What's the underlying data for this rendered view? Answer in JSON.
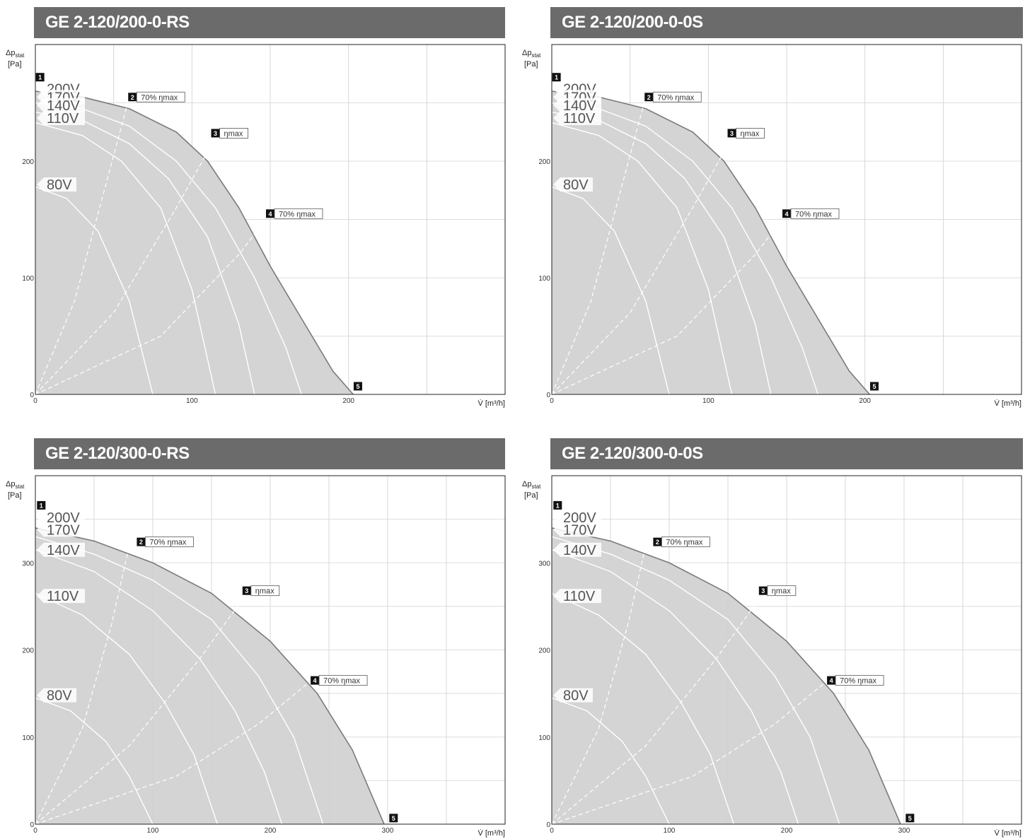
{
  "chart_data": [
    {
      "type": "line",
      "title": "GE 2-120/200-0-RS",
      "ylabel": "Δp",
      "ylabel_sub": "stat",
      "ylabel_unit": "[Pa]",
      "xlabel": "V̇ [m³/h]",
      "xlim": [
        0,
        300
      ],
      "ylim": [
        0,
        300
      ],
      "x_ticks": [
        0,
        100,
        200
      ],
      "y_ticks": [
        0,
        100,
        200
      ],
      "grid": true,
      "series": [
        {
          "name": "200V",
          "x": [
            0,
            30,
            60,
            90,
            110,
            130,
            150,
            170,
            190,
            203
          ],
          "y": [
            260,
            255,
            245,
            225,
            200,
            160,
            110,
            65,
            20,
            0
          ]
        },
        {
          "name": "170V",
          "x": [
            0,
            30,
            60,
            90,
            115,
            140,
            160,
            170
          ],
          "y": [
            250,
            245,
            230,
            200,
            160,
            100,
            40,
            0
          ]
        },
        {
          "name": "140V",
          "x": [
            0,
            30,
            60,
            85,
            110,
            130,
            140
          ],
          "y": [
            242,
            235,
            215,
            185,
            135,
            60,
            0
          ]
        },
        {
          "name": "110V",
          "x": [
            0,
            30,
            55,
            80,
            100,
            115
          ],
          "y": [
            233,
            222,
            200,
            160,
            90,
            0
          ]
        },
        {
          "name": "80V",
          "x": [
            0,
            20,
            40,
            60,
            75
          ],
          "y": [
            178,
            168,
            140,
            80,
            0
          ]
        }
      ],
      "efficiency_curves": [
        {
          "name": "70% ηmax (2)",
          "x": [
            0,
            25,
            45,
            60
          ],
          "y": [
            0,
            80,
            180,
            255
          ]
        },
        {
          "name": "ηmax (3)",
          "x": [
            0,
            50,
            90,
            115
          ],
          "y": [
            0,
            70,
            160,
            220
          ]
        },
        {
          "name": "70% ηmax (4)",
          "x": [
            0,
            80,
            130,
            150
          ],
          "y": [
            0,
            50,
            120,
            155
          ]
        }
      ],
      "markers": [
        {
          "id": "1",
          "x": 3,
          "y": 272,
          "label": ""
        },
        {
          "id": "2",
          "x": 62,
          "y": 255,
          "label": "70% ηmax"
        },
        {
          "id": "3",
          "x": 115,
          "y": 224,
          "label": "ηmax"
        },
        {
          "id": "4",
          "x": 150,
          "y": 155,
          "label": "70% ηmax"
        },
        {
          "id": "5",
          "x": 206,
          "y": 7,
          "label": ""
        }
      ],
      "voltage_labels": [
        {
          "label": "200V",
          "y": 262
        },
        {
          "label": "170V",
          "y": 255
        },
        {
          "label": "140V",
          "y": 248
        },
        {
          "label": "110V",
          "y": 237
        },
        {
          "label": "80V",
          "y": 180
        }
      ]
    },
    {
      "type": "line",
      "title": "GE 2-120/200-0-0S",
      "ylabel": "Δp",
      "ylabel_sub": "stat",
      "ylabel_unit": "[Pa]",
      "xlabel": "V̇ [m³/h]",
      "xlim": [
        0,
        300
      ],
      "ylim": [
        0,
        300
      ],
      "x_ticks": [
        0,
        100,
        200
      ],
      "y_ticks": [
        0,
        100,
        200
      ],
      "grid": true,
      "series": [
        {
          "name": "200V",
          "x": [
            0,
            30,
            60,
            90,
            110,
            130,
            150,
            170,
            190,
            203
          ],
          "y": [
            260,
            255,
            245,
            225,
            200,
            160,
            110,
            65,
            20,
            0
          ]
        },
        {
          "name": "170V",
          "x": [
            0,
            30,
            60,
            90,
            115,
            140,
            160,
            170
          ],
          "y": [
            250,
            245,
            230,
            200,
            160,
            100,
            40,
            0
          ]
        },
        {
          "name": "140V",
          "x": [
            0,
            30,
            60,
            85,
            110,
            130,
            140
          ],
          "y": [
            242,
            235,
            215,
            185,
            135,
            60,
            0
          ]
        },
        {
          "name": "110V",
          "x": [
            0,
            30,
            55,
            80,
            100,
            115
          ],
          "y": [
            233,
            222,
            200,
            160,
            90,
            0
          ]
        },
        {
          "name": "80V",
          "x": [
            0,
            20,
            40,
            60,
            75
          ],
          "y": [
            178,
            168,
            140,
            80,
            0
          ]
        }
      ],
      "efficiency_curves": [
        {
          "name": "70% ηmax (2)",
          "x": [
            0,
            25,
            45,
            60
          ],
          "y": [
            0,
            80,
            180,
            255
          ]
        },
        {
          "name": "ηmax (3)",
          "x": [
            0,
            50,
            90,
            115
          ],
          "y": [
            0,
            70,
            160,
            220
          ]
        },
        {
          "name": "70% ηmax (4)",
          "x": [
            0,
            80,
            130,
            150
          ],
          "y": [
            0,
            50,
            120,
            155
          ]
        }
      ],
      "markers": [
        {
          "id": "1",
          "x": 3,
          "y": 272,
          "label": ""
        },
        {
          "id": "2",
          "x": 62,
          "y": 255,
          "label": "70% ηmax"
        },
        {
          "id": "3",
          "x": 115,
          "y": 224,
          "label": "ηmax"
        },
        {
          "id": "4",
          "x": 150,
          "y": 155,
          "label": "70% ηmax"
        },
        {
          "id": "5",
          "x": 206,
          "y": 7,
          "label": ""
        }
      ],
      "voltage_labels": [
        {
          "label": "200V",
          "y": 262
        },
        {
          "label": "170V",
          "y": 255
        },
        {
          "label": "140V",
          "y": 248
        },
        {
          "label": "110V",
          "y": 237
        },
        {
          "label": "80V",
          "y": 180
        }
      ]
    },
    {
      "type": "line",
      "title": "GE 2-120/300-0-RS",
      "ylabel": "Δp",
      "ylabel_sub": "stat",
      "ylabel_unit": "[Pa]",
      "xlabel": "V̇ [m³/h]",
      "xlim": [
        0,
        400
      ],
      "ylim": [
        0,
        400
      ],
      "x_ticks": [
        0,
        100,
        200,
        300
      ],
      "y_ticks": [
        0,
        100,
        200,
        300
      ],
      "grid": true,
      "series": [
        {
          "name": "200V",
          "x": [
            0,
            50,
            100,
            150,
            200,
            240,
            270,
            297
          ],
          "y": [
            340,
            325,
            300,
            265,
            210,
            150,
            85,
            0
          ]
        },
        {
          "name": "170V",
          "x": [
            0,
            50,
            100,
            150,
            190,
            220,
            245
          ],
          "y": [
            330,
            310,
            280,
            235,
            170,
            100,
            0
          ]
        },
        {
          "name": "140V",
          "x": [
            0,
            50,
            100,
            140,
            170,
            195,
            210
          ],
          "y": [
            315,
            290,
            245,
            190,
            130,
            60,
            0
          ]
        },
        {
          "name": "110V",
          "x": [
            0,
            40,
            80,
            110,
            135,
            155
          ],
          "y": [
            265,
            240,
            195,
            140,
            80,
            0
          ]
        },
        {
          "name": "80V",
          "x": [
            0,
            30,
            60,
            80,
            100
          ],
          "y": [
            145,
            130,
            95,
            55,
            0
          ]
        }
      ],
      "efficiency_curves": [
        {
          "name": "70% ηmax (2)",
          "x": [
            0,
            40,
            65,
            80
          ],
          "y": [
            0,
            110,
            230,
            320
          ]
        },
        {
          "name": "ηmax (3)",
          "x": [
            0,
            80,
            140,
            180
          ],
          "y": [
            0,
            90,
            190,
            265
          ]
        },
        {
          "name": "70% ηmax (4)",
          "x": [
            0,
            120,
            190,
            235
          ],
          "y": [
            0,
            55,
            115,
            165
          ]
        }
      ],
      "markers": [
        {
          "id": "1",
          "x": 5,
          "y": 366,
          "label": ""
        },
        {
          "id": "2",
          "x": 90,
          "y": 324,
          "label": "70% ηmax"
        },
        {
          "id": "3",
          "x": 180,
          "y": 268,
          "label": "ηmax"
        },
        {
          "id": "4",
          "x": 238,
          "y": 165,
          "label": "70% ηmax"
        },
        {
          "id": "5",
          "x": 305,
          "y": 7,
          "label": ""
        }
      ],
      "voltage_labels": [
        {
          "label": "200V",
          "y": 352
        },
        {
          "label": "170V",
          "y": 338
        },
        {
          "label": "140V",
          "y": 315
        },
        {
          "label": "110V",
          "y": 262
        },
        {
          "label": "80V",
          "y": 148
        }
      ]
    },
    {
      "type": "line",
      "title": "GE 2-120/300-0-0S",
      "ylabel": "Δp",
      "ylabel_sub": "stat",
      "ylabel_unit": "[Pa]",
      "xlabel": "V̇ [m³/h]",
      "xlim": [
        0,
        400
      ],
      "ylim": [
        0,
        400
      ],
      "x_ticks": [
        0,
        100,
        200,
        300
      ],
      "y_ticks": [
        0,
        100,
        200,
        300
      ],
      "grid": true,
      "series": [
        {
          "name": "200V",
          "x": [
            0,
            50,
            100,
            150,
            200,
            240,
            270,
            297
          ],
          "y": [
            340,
            325,
            300,
            265,
            210,
            150,
            85,
            0
          ]
        },
        {
          "name": "170V",
          "x": [
            0,
            50,
            100,
            150,
            190,
            220,
            245
          ],
          "y": [
            330,
            310,
            280,
            235,
            170,
            100,
            0
          ]
        },
        {
          "name": "140V",
          "x": [
            0,
            50,
            100,
            140,
            170,
            195,
            210
          ],
          "y": [
            315,
            290,
            245,
            190,
            130,
            60,
            0
          ]
        },
        {
          "name": "110V",
          "x": [
            0,
            40,
            80,
            110,
            135,
            155
          ],
          "y": [
            265,
            240,
            195,
            140,
            80,
            0
          ]
        },
        {
          "name": "80V",
          "x": [
            0,
            30,
            60,
            80,
            100
          ],
          "y": [
            145,
            130,
            95,
            55,
            0
          ]
        }
      ],
      "efficiency_curves": [
        {
          "name": "70% ηmax (2)",
          "x": [
            0,
            40,
            65,
            80
          ],
          "y": [
            0,
            110,
            230,
            320
          ]
        },
        {
          "name": "ηmax (3)",
          "x": [
            0,
            80,
            140,
            180
          ],
          "y": [
            0,
            90,
            190,
            265
          ]
        },
        {
          "name": "70% ηmax (4)",
          "x": [
            0,
            120,
            190,
            235
          ],
          "y": [
            0,
            55,
            115,
            165
          ]
        }
      ],
      "markers": [
        {
          "id": "1",
          "x": 5,
          "y": 366,
          "label": ""
        },
        {
          "id": "2",
          "x": 90,
          "y": 324,
          "label": "70% ηmax"
        },
        {
          "id": "3",
          "x": 180,
          "y": 268,
          "label": "ηmax"
        },
        {
          "id": "4",
          "x": 238,
          "y": 165,
          "label": "70% ηmax"
        },
        {
          "id": "5",
          "x": 305,
          "y": 7,
          "label": ""
        }
      ],
      "voltage_labels": [
        {
          "label": "200V",
          "y": 352
        },
        {
          "label": "170V",
          "y": 338
        },
        {
          "label": "140V",
          "y": 315
        },
        {
          "label": "110V",
          "y": 262
        },
        {
          "label": "80V",
          "y": 148
        }
      ]
    }
  ],
  "colors": {
    "header_bg": "#6b6b6b",
    "header_text": "#ffffff",
    "fill_area": "#d4d4d4",
    "envelope_line": "#7a7a7a",
    "grid": "#dddddd",
    "curve": "#ffffff",
    "badge": "#111111"
  }
}
